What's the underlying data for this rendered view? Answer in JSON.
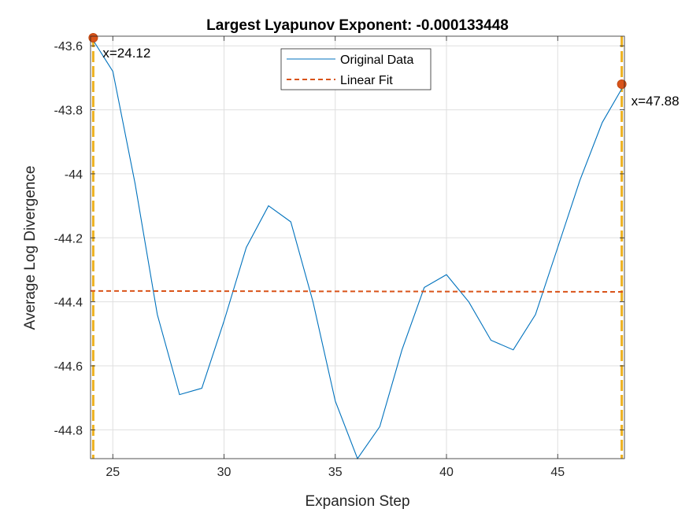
{
  "chart_data": {
    "type": "line",
    "title": "Largest Lyapunov Exponent: -0.000133448",
    "xlabel": "Expansion Step",
    "ylabel": "Average Log Divergence",
    "xlim": [
      24,
      48
    ],
    "ylim": [
      -44.89,
      -43.57
    ],
    "xticks": [
      25,
      30,
      35,
      40,
      45
    ],
    "xtick_labels": [
      "25",
      "30",
      "35",
      "40",
      "45"
    ],
    "yticks": [
      -43.6,
      -43.8,
      -44,
      -44.2,
      -44.4,
      -44.6,
      -44.8
    ],
    "ytick_labels": [
      "-43.6",
      "-43.8",
      "-44",
      "-44.2",
      "-44.4",
      "-44.6",
      "-44.8"
    ],
    "grid": true,
    "legend_placement": "top-center",
    "series": [
      {
        "name": "Original Data",
        "style": "solid",
        "color": "#0072BD",
        "x": [
          24,
          25,
          26,
          27,
          28,
          29,
          30,
          31,
          32,
          33,
          34,
          35,
          36,
          37,
          38,
          39,
          40,
          41,
          42,
          43,
          44,
          45,
          46,
          47,
          48
        ],
        "y": [
          -43.57,
          -43.68,
          -44.03,
          -44.44,
          -44.69,
          -44.67,
          -44.46,
          -44.23,
          -44.1,
          -44.15,
          -44.4,
          -44.71,
          -44.89,
          -44.79,
          -44.55,
          -44.355,
          -44.315,
          -44.4,
          -44.52,
          -44.55,
          -44.44,
          -44.23,
          -44.02,
          -43.84,
          -43.72
        ]
      },
      {
        "name": "Linear Fit",
        "style": "dashed",
        "color": "#D95319",
        "x": [
          24,
          48
        ],
        "y": [
          -44.366,
          -44.369
        ]
      }
    ],
    "vertical_lines": {
      "color": "#EDB120",
      "x": [
        24.12,
        47.88
      ]
    },
    "markers": [
      {
        "x": 24.12,
        "y": -43.575,
        "label": "x=24.12"
      },
      {
        "x": 47.88,
        "y": -43.72,
        "label": "x=47.88"
      }
    ],
    "marker_color": "#D95319"
  }
}
